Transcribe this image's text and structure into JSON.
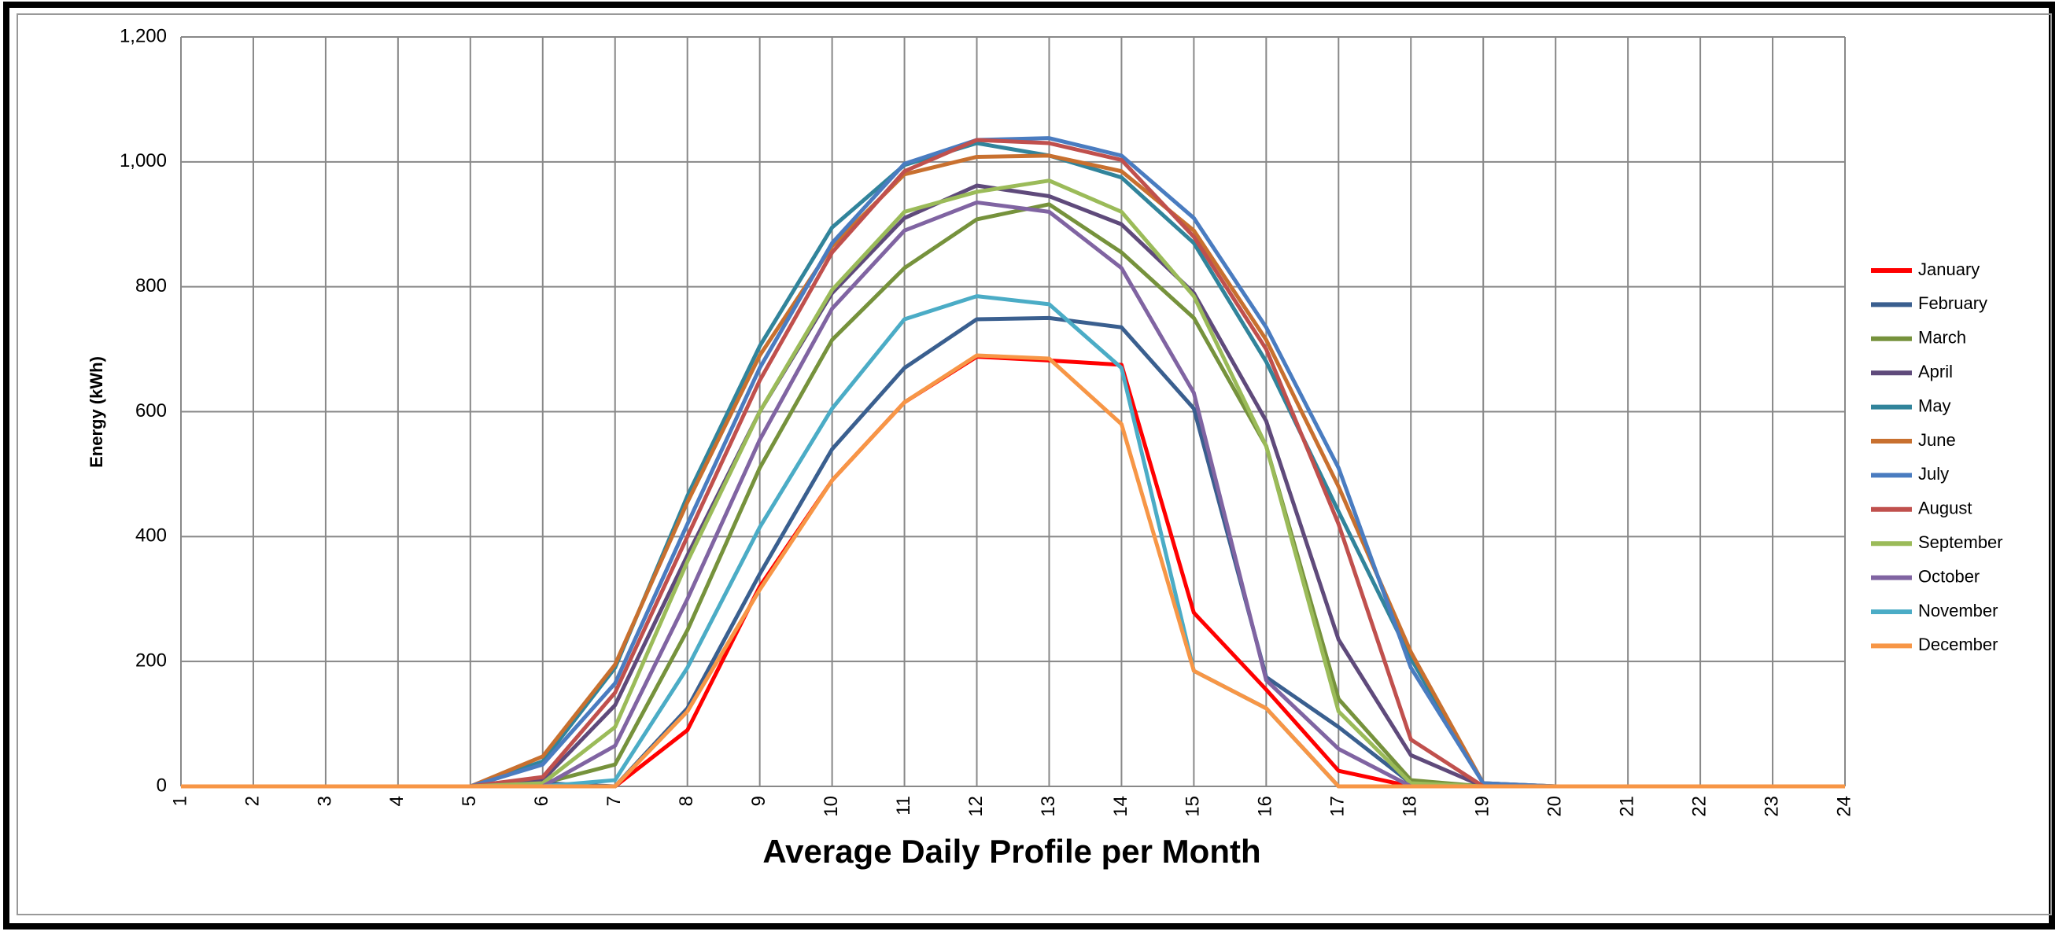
{
  "chart_data": {
    "type": "line",
    "title": "Average Daily Profile per Month",
    "y_label": "Energy (kWh)",
    "x": [
      1,
      2,
      3,
      4,
      5,
      6,
      7,
      8,
      9,
      10,
      11,
      12,
      13,
      14,
      15,
      16,
      17,
      18,
      19,
      20,
      21,
      22,
      23,
      24
    ],
    "xlim": [
      1,
      24
    ],
    "xticks": [
      1,
      2,
      3,
      4,
      5,
      6,
      7,
      8,
      9,
      10,
      11,
      12,
      13,
      14,
      15,
      16,
      17,
      18,
      19,
      20,
      21,
      22,
      23,
      24
    ],
    "ylim": [
      0,
      1200
    ],
    "yticks": [
      0,
      200,
      400,
      600,
      800,
      {
        "value": 1000,
        "label": "1,000"
      },
      {
        "value": 1200,
        "label": "1,200"
      }
    ],
    "grid": true,
    "legend": "right",
    "series": [
      {
        "name": "January",
        "color": "#ff0000",
        "values": [
          0,
          0,
          0,
          0,
          0,
          0,
          0,
          90,
          320,
          490,
          615,
          688,
          682,
          675,
          278,
          155,
          25,
          0,
          0,
          0,
          0,
          0,
          0,
          0
        ]
      },
      {
        "name": "February",
        "color": "#3a5f8f",
        "values": [
          0,
          0,
          0,
          0,
          0,
          5,
          0,
          125,
          340,
          540,
          670,
          748,
          750,
          735,
          605,
          175,
          95,
          5,
          0,
          0,
          0,
          0,
          0,
          0
        ]
      },
      {
        "name": "March",
        "color": "#76923c",
        "values": [
          0,
          0,
          0,
          0,
          0,
          5,
          35,
          250,
          510,
          715,
          830,
          908,
          932,
          855,
          750,
          545,
          140,
          10,
          0,
          0,
          0,
          0,
          0,
          0
        ]
      },
      {
        "name": "April",
        "color": "#5f4a7b",
        "values": [
          0,
          0,
          0,
          0,
          0,
          10,
          130,
          370,
          600,
          790,
          910,
          962,
          945,
          900,
          790,
          585,
          235,
          50,
          0,
          0,
          0,
          0,
          0,
          0
        ]
      },
      {
        "name": "May",
        "color": "#31849b",
        "values": [
          0,
          0,
          0,
          0,
          0,
          40,
          190,
          465,
          705,
          895,
          995,
          1030,
          1010,
          975,
          870,
          680,
          440,
          205,
          5,
          0,
          0,
          0,
          0,
          0
        ]
      },
      {
        "name": "June",
        "color": "#c8702f",
        "values": [
          0,
          0,
          0,
          0,
          0,
          48,
          195,
          455,
          690,
          865,
          980,
          1008,
          1010,
          985,
          890,
          715,
          480,
          215,
          5,
          0,
          0,
          0,
          0,
          0
        ]
      },
      {
        "name": "July",
        "color": "#4a7cc0",
        "values": [
          0,
          0,
          0,
          0,
          0,
          35,
          165,
          420,
          670,
          870,
          997,
          1035,
          1038,
          1010,
          910,
          735,
          510,
          190,
          5,
          0,
          0,
          0,
          0,
          0
        ]
      },
      {
        "name": "August",
        "color": "#c0504d",
        "values": [
          0,
          0,
          0,
          0,
          0,
          15,
          150,
          400,
          650,
          855,
          985,
          1035,
          1030,
          1003,
          880,
          700,
          420,
          75,
          0,
          0,
          0,
          0,
          0,
          0
        ]
      },
      {
        "name": "September",
        "color": "#9bbb59",
        "values": [
          0,
          0,
          0,
          0,
          0,
          5,
          95,
          360,
          600,
          795,
          920,
          952,
          970,
          920,
          785,
          545,
          120,
          5,
          0,
          0,
          0,
          0,
          0,
          0
        ]
      },
      {
        "name": "October",
        "color": "#8064a2",
        "values": [
          0,
          0,
          0,
          0,
          0,
          0,
          65,
          300,
          555,
          765,
          890,
          935,
          920,
          830,
          630,
          170,
          60,
          0,
          0,
          0,
          0,
          0,
          0,
          0
        ]
      },
      {
        "name": "November",
        "color": "#4bacc6",
        "values": [
          0,
          0,
          0,
          0,
          0,
          0,
          10,
          190,
          415,
          605,
          748,
          785,
          772,
          670,
          185,
          125,
          0,
          0,
          0,
          0,
          0,
          0,
          0,
          0
        ]
      },
      {
        "name": "December",
        "color": "#f79646",
        "values": [
          0,
          0,
          0,
          0,
          0,
          0,
          0,
          120,
          315,
          490,
          615,
          690,
          685,
          580,
          185,
          125,
          0,
          0,
          0,
          0,
          0,
          0,
          0,
          0
        ]
      }
    ]
  }
}
